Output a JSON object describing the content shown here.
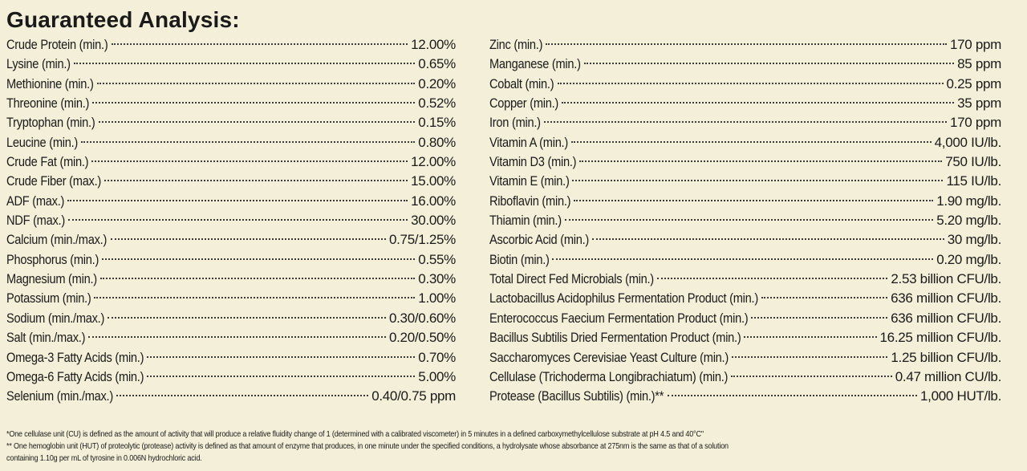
{
  "title": "Guaranteed Analysis:",
  "left_column": [
    {
      "label": "Crude Protein (min.)",
      "value": "12.00%"
    },
    {
      "label": "Lysine (min.)",
      "value": "0.65%"
    },
    {
      "label": "Methionine (min.)",
      "value": "0.20%"
    },
    {
      "label": "Threonine (min.)",
      "value": "0.52%"
    },
    {
      "label": "Tryptophan (min.)",
      "value": "0.15%"
    },
    {
      "label": "Leucine (min.)",
      "value": "0.80%"
    },
    {
      "label": "Crude Fat (min.)",
      "value": "12.00%"
    },
    {
      "label": "Crude Fiber (max.)",
      "value": "15.00%"
    },
    {
      "label": "ADF (max.)",
      "value": "16.00%"
    },
    {
      "label": "NDF (max.)",
      "value": "30.00%"
    },
    {
      "label": "Calcium (min./max.)",
      "value": "0.75/1.25%"
    },
    {
      "label": "Phosphorus (min.)",
      "value": "0.55%"
    },
    {
      "label": "Magnesium (min.)",
      "value": "0.30%"
    },
    {
      "label": "Potassium (min.)",
      "value": "1.00%"
    },
    {
      "label": "Sodium (min./max.)",
      "value": "0.30/0.60%"
    },
    {
      "label": "Salt (min./max.)",
      "value": "0.20/0.50%"
    },
    {
      "label": "Omega-3 Fatty Acids (min.)",
      "value": "0.70%"
    },
    {
      "label": "Omega-6 Fatty Acids (min.)",
      "value": "5.00%"
    },
    {
      "label": "Selenium (min./max.)",
      "value": "0.40/0.75 ppm"
    }
  ],
  "right_column": [
    {
      "label": "Zinc (min.)",
      "value": "170 ppm"
    },
    {
      "label": "Manganese (min.)",
      "value": "85 ppm"
    },
    {
      "label": "Cobalt (min.)",
      "value": "0.25 ppm"
    },
    {
      "label": "Copper (min.)",
      "value": "35 ppm"
    },
    {
      "label": "Iron (min.)",
      "value": "170 ppm"
    },
    {
      "label": "Vitamin A (min.)",
      "value": "4,000 IU/lb."
    },
    {
      "label": "Vitamin D3 (min.)",
      "value": "750 IU/lb."
    },
    {
      "label": "Vitamin E (min.)",
      "value": "115 IU/lb."
    },
    {
      "label": "Riboflavin (min.)",
      "value": "1.90 mg/lb."
    },
    {
      "label": "Thiamin (min.)",
      "value": "5.20 mg/lb."
    },
    {
      "label": "Ascorbic Acid (min.)",
      "value": "30 mg/lb."
    },
    {
      "label": "Biotin (min.)",
      "value": "0.20 mg/lb."
    },
    {
      "label": "Total Direct Fed Microbials (min.)",
      "value": "2.53 billion CFU/lb."
    },
    {
      "label": "Lactobacillus Acidophilus Fermentation Product (min.)",
      "value": "636 million CFU/lb."
    },
    {
      "label": "Enterococcus Faecium Fermentation Product (min.)",
      "value": "636 million CFU/lb."
    },
    {
      "label": "Bacillus Subtilis Dried Fermentation Product (min.)",
      "value": "16.25 million CFU/lb."
    },
    {
      "label": "Saccharomyces Cerevisiae Yeast Culture (min.)",
      "value": "1.25 billion CFU/lb."
    },
    {
      "label": "Cellulase (Trichoderma Longibrachiatum) (min.)",
      "value": "0.47 million CU/lb."
    },
    {
      "label": "Protease (Bacillus Subtilis) (min.)**",
      "value": "1,000 HUT/lb."
    }
  ],
  "footnotes": [
    "*One cellulase unit (CU) is defined as the amount of activity that will produce a relative fluidity change of 1 (determined with a calibrated viscometer) in 5 minutes in a defined carboxymethylcellulose substrate at pH 4.5 and 40°C\"",
    "** One hemoglobin unit (HUT) of proteolytic (protease) activity is defined as that amount of enzyme that produces, in one minute under the specified conditions, a hydrolysate whose absorbance at 275nm is the same as that of a solution",
    "containing 1.10g per mL of tyrosine in 0.006N hydrochloric acid."
  ]
}
